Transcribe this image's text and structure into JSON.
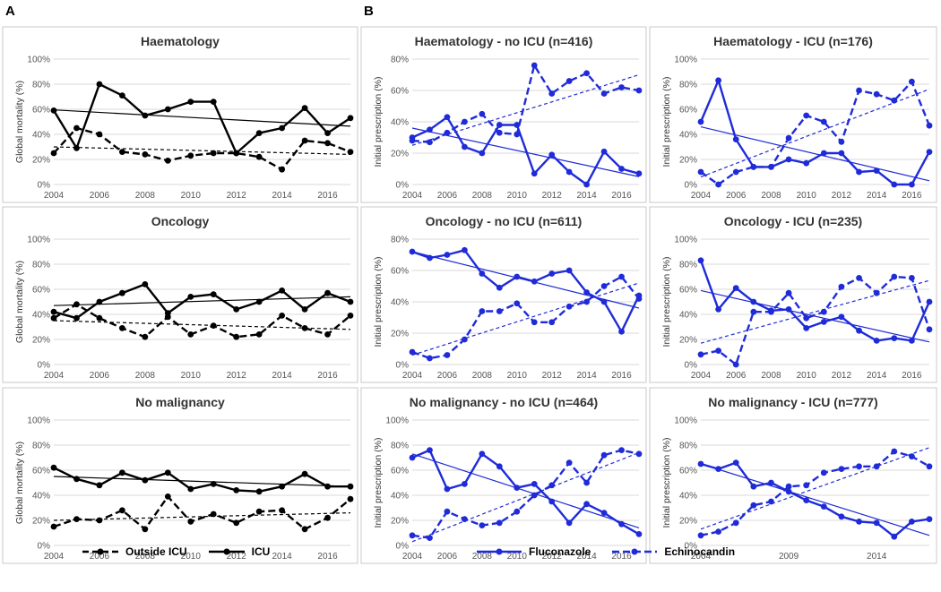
{
  "panel_labels": [
    "A",
    "B"
  ],
  "legend_left": {
    "dashed": "Outside ICU",
    "solid": "ICU",
    "color": "#000000"
  },
  "legend_right": {
    "solid": "Fluconazole",
    "dashed": "Echinocandin",
    "color": "#1f2bd8"
  },
  "chart_data": [
    {
      "type": "line",
      "title": "Haematology",
      "ylabel": "Global mortality (%)",
      "x": [
        2004,
        2005,
        2006,
        2007,
        2008,
        2009,
        2010,
        2011,
        2012,
        2013,
        2014,
        2015,
        2016,
        2017
      ],
      "xticks": [
        2004,
        2006,
        2008,
        2010,
        2012,
        2014,
        2016
      ],
      "xlim": [
        2004,
        2017
      ],
      "ylim": [
        0,
        100
      ],
      "yticks": [
        0,
        20,
        40,
        60,
        80,
        100
      ],
      "color": "#000000",
      "series": [
        {
          "name": "ICU",
          "style": "solid",
          "values": [
            59,
            29,
            80,
            71,
            55,
            60,
            66,
            66,
            25,
            41,
            45,
            61,
            41,
            53
          ],
          "trend": [
            59.5,
            46.5
          ]
        },
        {
          "name": "Outside ICU",
          "style": "dashed",
          "values": [
            25,
            45,
            40,
            26,
            24,
            19,
            23,
            25,
            25,
            22,
            12,
            35,
            33,
            26
          ],
          "trend": [
            30,
            24
          ]
        }
      ]
    },
    {
      "type": "line",
      "title": "Haematology - no ICU (n=416)",
      "ylabel": "Initial prescription (%)",
      "x": [
        2004,
        2005,
        2006,
        2007,
        2008,
        2009,
        2010,
        2011,
        2012,
        2013,
        2014,
        2015,
        2016,
        2017
      ],
      "xticks": [
        2004,
        2006,
        2008,
        2010,
        2012,
        2014,
        2016
      ],
      "xlim": [
        2004,
        2017
      ],
      "ylim": [
        0,
        80
      ],
      "yticks": [
        0,
        20,
        40,
        60,
        80
      ],
      "color": "#1f2bd8",
      "series": [
        {
          "name": "Fluconazole",
          "style": "solid",
          "values": [
            30,
            35,
            43,
            24,
            20,
            38,
            38,
            7,
            19,
            8,
            0,
            21,
            10,
            7
          ],
          "trend": [
            36,
            5
          ]
        },
        {
          "name": "Echinocandin",
          "style": "dashed",
          "values": [
            28,
            27,
            33,
            40,
            45,
            33,
            32,
            76,
            58,
            66,
            71,
            58,
            62,
            60
          ],
          "trend": [
            25,
            70
          ]
        }
      ]
    },
    {
      "type": "line",
      "title": "Haematology -  ICU (n=176)",
      "ylabel": "Initial prescription (%)",
      "x": [
        2004,
        2005,
        2006,
        2007,
        2008,
        2009,
        2010,
        2011,
        2012,
        2013,
        2014,
        2015,
        2016,
        2017
      ],
      "xticks": [
        2004,
        2006,
        2008,
        2010,
        2012,
        2014,
        2016
      ],
      "xlim": [
        2004,
        2017
      ],
      "ylim": [
        0,
        100
      ],
      "yticks": [
        0,
        20,
        40,
        60,
        80,
        100
      ],
      "color": "#1f2bd8",
      "series": [
        {
          "name": "Fluconazole",
          "style": "solid",
          "values": [
            50,
            83,
            36,
            14,
            14,
            20,
            17,
            25,
            25,
            10,
            11,
            0,
            0,
            26
          ],
          "trend": [
            46,
            3
          ]
        },
        {
          "name": "Echinocandin",
          "style": "dashed",
          "values": [
            10,
            0,
            10,
            14,
            14,
            37,
            55,
            50,
            34,
            75,
            72,
            67,
            82,
            47
          ],
          "trend": [
            6,
            76
          ]
        }
      ]
    },
    {
      "type": "line",
      "title": "Oncology",
      "ylabel": "Global mortality (%)",
      "x": [
        2004,
        2005,
        2006,
        2007,
        2008,
        2009,
        2010,
        2011,
        2012,
        2013,
        2014,
        2015,
        2016,
        2017
      ],
      "xticks": [
        2004,
        2006,
        2008,
        2010,
        2012,
        2014,
        2016
      ],
      "xlim": [
        2004,
        2017
      ],
      "ylim": [
        0,
        100
      ],
      "yticks": [
        0,
        20,
        40,
        60,
        80,
        100
      ],
      "color": "#000000",
      "series": [
        {
          "name": "ICU",
          "style": "solid",
          "values": [
            42,
            37,
            50,
            57,
            64,
            41,
            54,
            56,
            44,
            50,
            59,
            44,
            57,
            50
          ],
          "trend": [
            47,
            54
          ]
        },
        {
          "name": "Outside ICU",
          "style": "dashed",
          "values": [
            37,
            48,
            37,
            29,
            22,
            38,
            24,
            31,
            22,
            24,
            39,
            29,
            24,
            39
          ],
          "trend": [
            35,
            28
          ]
        }
      ]
    },
    {
      "type": "line",
      "title": "Oncology - no ICU (n=611)",
      "ylabel": "Initial prescription (%)",
      "x": [
        2004,
        2005,
        2006,
        2007,
        2008,
        2009,
        2010,
        2011,
        2012,
        2013,
        2014,
        2015,
        2016,
        2017
      ],
      "xticks": [
        2004,
        2006,
        2008,
        2010,
        2012,
        2014,
        2016
      ],
      "xlim": [
        2004,
        2017
      ],
      "ylim": [
        0,
        80
      ],
      "yticks": [
        0,
        20,
        40,
        60,
        80
      ],
      "color": "#1f2bd8",
      "series": [
        {
          "name": "Fluconazole",
          "style": "solid",
          "values": [
            72,
            68,
            70,
            73,
            58,
            49,
            56,
            53,
            58,
            60,
            46,
            40,
            21,
            44
          ],
          "trend": [
            72,
            36
          ]
        },
        {
          "name": "Echinocandin",
          "style": "dashed",
          "values": [
            8,
            4,
            6,
            16,
            34,
            34,
            39,
            27,
            27,
            37,
            40,
            50,
            56,
            42
          ],
          "trend": [
            6,
            52
          ]
        }
      ]
    },
    {
      "type": "line",
      "title": "Oncology -  ICU (n=235)",
      "ylabel": "Initial prescription (%)",
      "x": [
        2004,
        2005,
        2006,
        2007,
        2008,
        2009,
        2010,
        2011,
        2012,
        2013,
        2014,
        2015,
        2016,
        2017
      ],
      "xticks": [
        2004,
        2006,
        2008,
        2010,
        2012,
        2014,
        2016
      ],
      "xlim": [
        2004,
        2017
      ],
      "ylim": [
        0,
        100
      ],
      "yticks": [
        0,
        20,
        40,
        60,
        80,
        100
      ],
      "color": "#1f2bd8",
      "series": [
        {
          "name": "Fluconazole",
          "style": "solid",
          "values": [
            83,
            44,
            61,
            50,
            43,
            44,
            29,
            34,
            38,
            27,
            19,
            21,
            19,
            50
          ],
          "trend": [
            59,
            18
          ]
        },
        {
          "name": "Echinocandin",
          "style": "dashed",
          "values": [
            8,
            11,
            0,
            42,
            42,
            57,
            37,
            42,
            62,
            69,
            57,
            70,
            69,
            28
          ],
          "trend": [
            17,
            67
          ]
        }
      ]
    },
    {
      "type": "line",
      "title": "No malignancy",
      "ylabel": "Global mortality (%)",
      "x": [
        2004,
        2005,
        2006,
        2007,
        2008,
        2009,
        2010,
        2011,
        2012,
        2013,
        2014,
        2015,
        2016,
        2017
      ],
      "xticks": [
        2004,
        2006,
        2008,
        2010,
        2012,
        2014,
        2016
      ],
      "xlim": [
        2004,
        2017
      ],
      "ylim": [
        0,
        100
      ],
      "yticks": [
        0,
        20,
        40,
        60,
        80,
        100
      ],
      "color": "#000000",
      "series": [
        {
          "name": "ICU",
          "style": "solid",
          "values": [
            62,
            53,
            48,
            58,
            52,
            58,
            45,
            49,
            44,
            43,
            47,
            57,
            47,
            47
          ],
          "trend": [
            55,
            47
          ]
        },
        {
          "name": "Outside ICU",
          "style": "dashed",
          "values": [
            15,
            21,
            20,
            28,
            13,
            39,
            19,
            25,
            18,
            27,
            28,
            13,
            22,
            37
          ],
          "trend": [
            20,
            26
          ]
        }
      ]
    },
    {
      "type": "line",
      "title": "No malignancy - no ICU (n=464)",
      "ylabel": "Initial prescription (%)",
      "x": [
        2004,
        2005,
        2006,
        2007,
        2008,
        2009,
        2010,
        2011,
        2012,
        2013,
        2014,
        2015,
        2016,
        2017
      ],
      "xticks": [
        2004,
        2006,
        2008,
        2010,
        2012,
        2014,
        2016
      ],
      "xlim": [
        2004,
        2017
      ],
      "ylim": [
        0,
        100
      ],
      "yticks": [
        0,
        20,
        40,
        60,
        80,
        100
      ],
      "color": "#1f2bd8",
      "series": [
        {
          "name": "Fluconazole",
          "style": "solid",
          "values": [
            70,
            76,
            45,
            49,
            73,
            63,
            46,
            49,
            35,
            18,
            33,
            26,
            17,
            9
          ],
          "trend": [
            73,
            14
          ]
        },
        {
          "name": "Echinocandin",
          "style": "dashed",
          "values": [
            8,
            6,
            27,
            21,
            16,
            18,
            27,
            40,
            48,
            66,
            50,
            72,
            76,
            73
          ],
          "trend": [
            3,
            74
          ]
        }
      ]
    },
    {
      "type": "line",
      "title": "No malignancy -  ICU (n=777)",
      "ylabel": "Initial prescription (%)",
      "x": [
        2004,
        2005,
        2006,
        2007,
        2008,
        2009,
        2010,
        2011,
        2012,
        2013,
        2014,
        2015,
        2016,
        2017
      ],
      "xticks": [
        2004,
        2009,
        2014
      ],
      "xlim": [
        2004,
        2017
      ],
      "ylim": [
        0,
        100
      ],
      "yticks": [
        0,
        20,
        40,
        60,
        80,
        100
      ],
      "color": "#1f2bd8",
      "series": [
        {
          "name": "Fluconazole",
          "style": "solid",
          "values": [
            65,
            61,
            66,
            47,
            50,
            43,
            36,
            31,
            23,
            19,
            18,
            7,
            19,
            21
          ],
          "trend": [
            65,
            8
          ]
        },
        {
          "name": "Echinocandin",
          "style": "dashed",
          "values": [
            8,
            11,
            18,
            32,
            35,
            47,
            48,
            58,
            61,
            63,
            63,
            75,
            71,
            63
          ],
          "trend": [
            13,
            78
          ]
        }
      ]
    }
  ]
}
